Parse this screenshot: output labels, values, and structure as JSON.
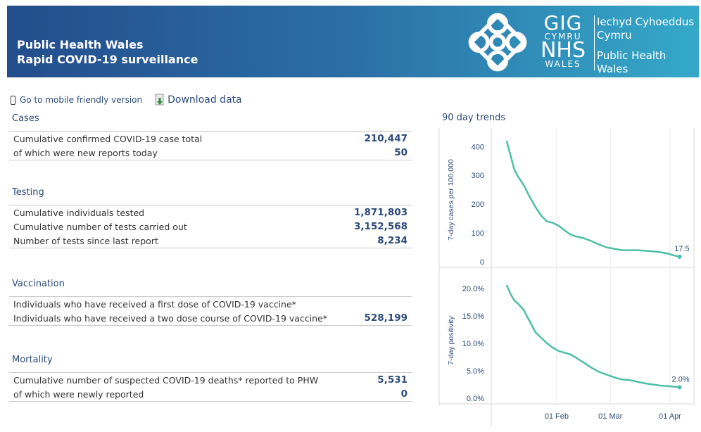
{
  "header": {
    "title_line1": "Public Health Wales",
    "title_line2": "Rapid COVID-19 surveillance",
    "logo": {
      "gig": "GIG",
      "cymru": "CYMRU",
      "nhs": "NHS",
      "wales": "WALES",
      "org_welsh_1": "Iechyd Cyhoeddus",
      "org_welsh_2": "Cymru",
      "org_english_1": "Public Health",
      "org_english_2": "Wales"
    }
  },
  "links": {
    "mobile": "Go to mobile friendly version",
    "download": "Download data"
  },
  "sections": {
    "cases": {
      "title": "Cases",
      "rows": [
        {
          "label": "Cumulative confirmed COVID-19 case total",
          "value": "210,447"
        },
        {
          "label": "of which were new reports today",
          "value": "50"
        }
      ]
    },
    "testing": {
      "title": "Testing",
      "rows": [
        {
          "label": "Cumulative individuals tested",
          "value": "1,871,803"
        },
        {
          "label": "Cumulative number of tests carried out",
          "value": "3,152,568"
        },
        {
          "label": "Number of tests since last report",
          "value": "8,234"
        }
      ]
    },
    "vaccination": {
      "title": "Vaccination",
      "rows": [
        {
          "label": "Individuals who have received a first dose of COVID-19 vaccine*",
          "value": ""
        },
        {
          "label": "Individuals who have received a two dose course of COVID-19 vaccine*",
          "value": "528,199"
        }
      ]
    },
    "mortality": {
      "title": "Mortality",
      "rows": [
        {
          "label": "Cumulative number of suspected COVID-19 deaths* reported to PHW",
          "value": "5,531"
        },
        {
          "label": "of which were newly reported",
          "value": "0"
        }
      ]
    }
  },
  "trends": {
    "title": "90 day trends",
    "x_ticks": [
      "01 Feb",
      "01 Mar",
      "01 Apr"
    ],
    "line_color": "#4dbfa6"
  },
  "chart_data": [
    {
      "type": "line",
      "ylabel": "7-day cases per 100,000",
      "ylim": [
        0,
        430
      ],
      "y_ticks": [
        "0",
        "100",
        "200",
        "300",
        "400"
      ],
      "end_label": "17.5",
      "x": [
        "2021-01-06",
        "2021-01-08",
        "2021-01-10",
        "2021-01-12",
        "2021-01-15",
        "2021-01-18",
        "2021-01-21",
        "2021-01-24",
        "2021-01-27",
        "2021-01-30",
        "2021-02-02",
        "2021-02-05",
        "2021-02-08",
        "2021-02-11",
        "2021-02-15",
        "2021-02-19",
        "2021-02-23",
        "2021-02-27",
        "2021-03-03",
        "2021-03-07",
        "2021-03-11",
        "2021-03-15",
        "2021-03-19",
        "2021-03-23",
        "2021-03-27",
        "2021-03-31",
        "2021-04-03",
        "2021-04-06"
      ],
      "values": [
        420,
        370,
        320,
        295,
        265,
        225,
        190,
        160,
        140,
        135,
        125,
        110,
        95,
        88,
        82,
        72,
        60,
        50,
        45,
        40,
        40,
        40,
        38,
        36,
        33,
        28,
        22,
        17.5
      ]
    },
    {
      "type": "line",
      "ylabel": "7-day positivity",
      "ylim": [
        0,
        21
      ],
      "y_ticks": [
        "0.0%",
        "5.0%",
        "10.0%",
        "15.0%",
        "20.0%"
      ],
      "end_label": "2.0%",
      "x": [
        "2021-01-06",
        "2021-01-08",
        "2021-01-10",
        "2021-01-12",
        "2021-01-15",
        "2021-01-18",
        "2021-01-21",
        "2021-01-24",
        "2021-01-27",
        "2021-01-30",
        "2021-02-02",
        "2021-02-05",
        "2021-02-08",
        "2021-02-11",
        "2021-02-15",
        "2021-02-19",
        "2021-02-23",
        "2021-02-27",
        "2021-03-03",
        "2021-03-07",
        "2021-03-11",
        "2021-03-15",
        "2021-03-19",
        "2021-03-23",
        "2021-03-27",
        "2021-03-31",
        "2021-04-03",
        "2021-04-06"
      ],
      "values": [
        20.6,
        19.0,
        17.8,
        17.2,
        16.0,
        14.0,
        12.0,
        11.0,
        10.0,
        9.2,
        8.6,
        8.3,
        8.0,
        7.4,
        6.5,
        5.6,
        4.8,
        4.3,
        3.8,
        3.4,
        3.3,
        3.0,
        2.7,
        2.5,
        2.3,
        2.2,
        2.1,
        2.0
      ]
    }
  ]
}
